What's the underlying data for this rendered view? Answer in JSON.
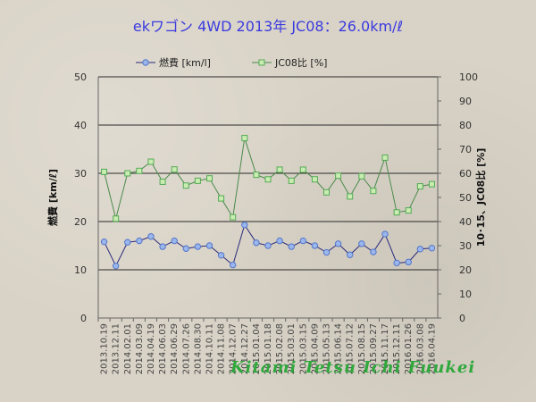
{
  "chart_data": {
    "type": "line",
    "title": "ekワゴン 4WD 2013年 JC08：26.0km/ℓ",
    "categories": [
      "2013.10.19",
      "2013.12.11",
      "2014.02.01",
      "2014.03.09",
      "2014.04.19",
      "2014.06.03",
      "2014.06.29",
      "2014.07.26",
      "2014.08.30",
      "2014.10.11",
      "2014.11.08",
      "2014.12.07",
      "2014.12.27",
      "2015.01.04",
      "2015.01.18",
      "2015.02.08",
      "2015.03.01",
      "2015.03.15",
      "2015.04.09",
      "2015.05.13",
      "2015.06.14",
      "2015.07.12",
      "2015.08.15",
      "2015.09.27",
      "2015.11.17",
      "2015.12.11",
      "2016.01.26",
      "2016.03.08",
      "2016.04.19"
    ],
    "series": [
      {
        "name": "燃費 [km/l]",
        "axis": "left",
        "color": "#2a2a7a",
        "marker_fill": "#9ab6ea",
        "marker_stroke": "#5577cc",
        "marker": "circle",
        "values": [
          15.8,
          10.8,
          15.7,
          16.0,
          16.9,
          14.8,
          16.0,
          14.4,
          14.8,
          15.0,
          13.0,
          11.0,
          19.3,
          15.6,
          15.0,
          16.0,
          14.8,
          16.0,
          15.0,
          13.6,
          15.4,
          13.1,
          15.4,
          13.7,
          17.4,
          11.4,
          11.6,
          14.3,
          14.5
        ]
      },
      {
        "name": "JC08比 [%]",
        "axis": "right",
        "color": "#4a8a4a",
        "marker_fill": "#c8ecb2",
        "marker_stroke": "#55aa55",
        "marker": "square",
        "values": [
          60.6,
          41.2,
          60.0,
          61.0,
          64.8,
          56.5,
          61.6,
          54.9,
          56.9,
          57.9,
          49.6,
          41.8,
          74.6,
          59.4,
          57.5,
          61.5,
          56.9,
          61.5,
          57.5,
          52.1,
          59.0,
          50.4,
          58.8,
          52.7,
          66.5,
          43.8,
          44.6,
          54.6,
          55.5
        ]
      }
    ],
    "yleft": {
      "label": "燃費 [km/ℓ]",
      "lim": [
        0,
        50
      ],
      "ticks": [
        0,
        10,
        20,
        30,
        40,
        50
      ]
    },
    "yright": {
      "label": "10･15、JC08比 [%]",
      "lim": [
        0,
        100
      ],
      "ticks": [
        0,
        10,
        20,
        30,
        40,
        50,
        60,
        70,
        80,
        90,
        100
      ]
    },
    "grid": true,
    "legend_placement": "top"
  },
  "watermark": "Kitami  Tetsu  Ichi  Fuukei"
}
